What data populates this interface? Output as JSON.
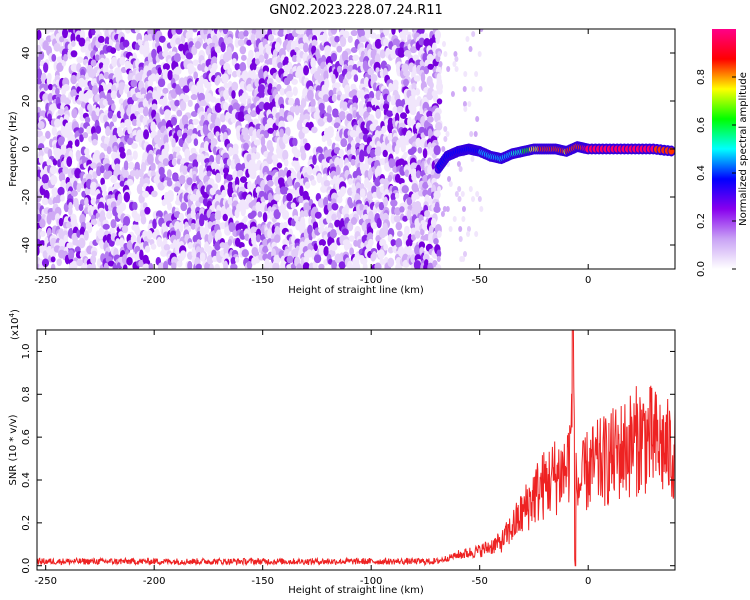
{
  "title": "GN02.2023.228.07.24.R11",
  "chart_data": [
    {
      "type": "heatmap",
      "xlabel": "Height of straight line (km)",
      "ylabel": "Frequency (Hz)",
      "xlim": [
        -254,
        40
      ],
      "ylim": [
        -50,
        50
      ],
      "x_ticks": [
        -250,
        -200,
        -150,
        -100,
        -50,
        0
      ],
      "y_ticks": [
        -40,
        -20,
        0,
        20,
        40
      ],
      "colorbar": {
        "label": "Normalized spectral amplitude",
        "range": [
          0,
          1
        ],
        "ticks": [
          "0.0",
          "0.2",
          "0.4",
          "0.6",
          "0.8"
        ],
        "colors": [
          "#ffffff",
          "#c9a3f5",
          "#8800ee",
          "#0000ff",
          "#00ffff",
          "#00ff00",
          "#ffff00",
          "#ff0000",
          "#ff0088"
        ]
      },
      "noise_region_x": [
        -254,
        -69
      ],
      "sparse_region_x": [
        -69,
        -50
      ],
      "signal_track": {
        "x": [
          -69,
          -65,
          -60,
          -55,
          -50,
          -45,
          -40,
          -35,
          -30,
          -25,
          -20,
          -15,
          -10,
          -5,
          0,
          10,
          20,
          30,
          40
        ],
        "freq": [
          -8,
          -3,
          -1,
          0,
          -1,
          -3,
          -4,
          -2,
          -1,
          0,
          0,
          0,
          -1,
          1,
          0,
          0,
          0,
          0,
          -1
        ],
        "amplitude": [
          0.3,
          0.35,
          0.4,
          0.4,
          0.4,
          0.45,
          0.45,
          0.5,
          0.6,
          0.75,
          0.85,
          0.9,
          0.8,
          0.85,
          0.95,
          0.95,
          0.92,
          0.92,
          0.8
        ]
      }
    },
    {
      "type": "line",
      "xlabel": "Height of straight line (km)",
      "ylabel": "SNR (10 * v/v)",
      "exponent_label": "(x10",
      "exponent_power": "4",
      "exponent_close": ")",
      "xlim": [
        -254,
        40
      ],
      "ylim": [
        -0.02,
        1.1
      ],
      "x_ticks": [
        -250,
        -200,
        -150,
        -100,
        -50,
        0
      ],
      "y_ticks": [
        "0.0",
        "0.2",
        "0.4",
        "0.6",
        "0.8",
        "1.0"
      ],
      "series": [
        {
          "color": "#ee2222",
          "x": [
            -254,
            -200,
            -150,
            -100,
            -70,
            -60,
            -55,
            -50,
            -45,
            -40,
            -35,
            -30,
            -25,
            -20,
            -15,
            -10,
            -8,
            -7,
            -6,
            -5,
            0,
            10,
            20,
            25,
            30,
            35,
            40
          ],
          "y": [
            0.02,
            0.02,
            0.02,
            0.02,
            0.02,
            0.05,
            0.06,
            0.07,
            0.09,
            0.11,
            0.18,
            0.25,
            0.33,
            0.38,
            0.42,
            0.45,
            0.55,
            1.1,
            0.4,
            0.35,
            0.45,
            0.5,
            0.57,
            0.6,
            0.58,
            0.55,
            0.52
          ]
        }
      ]
    }
  ]
}
